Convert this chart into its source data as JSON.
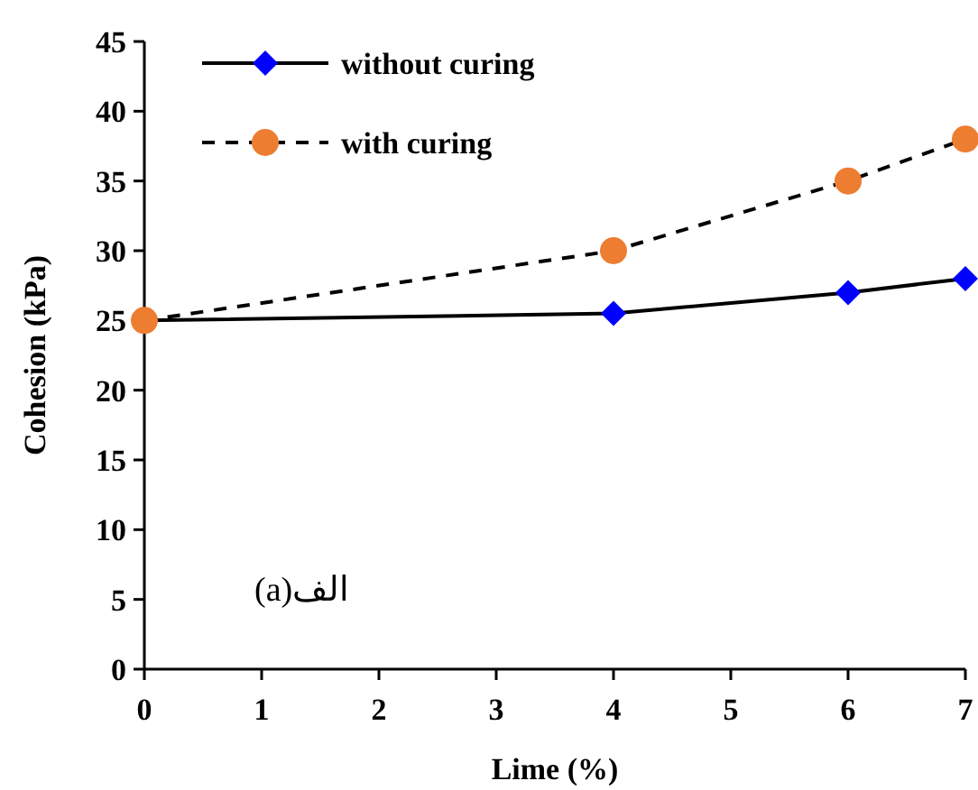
{
  "chart_data": {
    "type": "line",
    "xlabel": "Lime (%)",
    "ylabel": "Cohesion (kPa)",
    "annotations": [
      "الف(a)"
    ],
    "x": [
      0,
      4,
      6,
      7
    ],
    "series": [
      {
        "name": "without curing",
        "color": "#0000ff",
        "values": [
          25,
          25.5,
          27,
          28
        ],
        "marker": "diamond",
        "line_style": "solid"
      },
      {
        "name": "with curing",
        "color": "#ed7d31",
        "values": [
          25,
          30,
          35,
          38
        ],
        "marker": "circle",
        "line_style": "dashed"
      }
    ],
    "xlim": [
      0,
      7
    ],
    "xticks": [
      0,
      1,
      2,
      3,
      4,
      5,
      6,
      7
    ],
    "ylim": [
      0,
      45
    ],
    "yticks": [
      0,
      5,
      10,
      15,
      20,
      25,
      30,
      35,
      40,
      45
    ],
    "grid": false,
    "legend": "top left"
  }
}
